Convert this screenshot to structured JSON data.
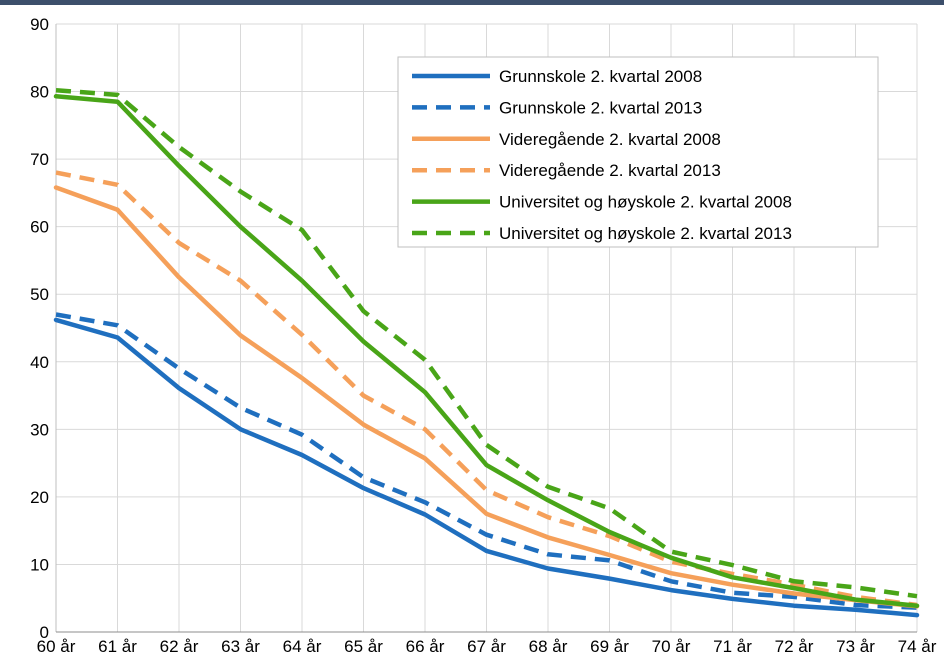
{
  "chart_data": {
    "type": "line",
    "title": "",
    "xlabel": "",
    "ylabel": "",
    "categories": [
      "60 år",
      "61 år",
      "62 år",
      "63 år",
      "64 år",
      "65 år",
      "66 år",
      "67 år",
      "68 år",
      "69 år",
      "70 år",
      "71 år",
      "72 år",
      "73 år",
      "74 år"
    ],
    "ylim": [
      0,
      90
    ],
    "yticks": [
      0,
      10,
      20,
      30,
      40,
      50,
      60,
      70,
      80,
      90
    ],
    "grid": true,
    "legend_position": "top-right",
    "series": [
      {
        "name": "Grunnskole 2. kvartal 2008",
        "color": "#1f6fbf",
        "style": "solid",
        "values": [
          46.2,
          43.6,
          36.1,
          30.0,
          26.2,
          21.3,
          17.4,
          12.0,
          9.4,
          7.9,
          6.2,
          4.9,
          3.9,
          3.3,
          2.5
        ]
      },
      {
        "name": "Grunnskole 2. kvartal 2013",
        "color": "#1f6fbf",
        "style": "dashed",
        "values": [
          47.0,
          45.4,
          39.0,
          33.2,
          29.2,
          22.9,
          19.2,
          14.4,
          11.5,
          10.6,
          7.5,
          5.8,
          5.2,
          4.0,
          3.6
        ]
      },
      {
        "name": "Videregående 2. kvartal 2008",
        "color": "#f5a05a",
        "style": "solid",
        "values": [
          65.8,
          62.5,
          52.5,
          43.9,
          37.6,
          30.7,
          25.7,
          17.5,
          14.0,
          11.4,
          8.7,
          7.0,
          5.7,
          4.7,
          3.8
        ]
      },
      {
        "name": "Videregående 2. kvartal 2013",
        "color": "#f5a05a",
        "style": "dashed",
        "values": [
          68.0,
          66.2,
          57.6,
          52.0,
          44.0,
          35.0,
          30.0,
          21.0,
          17.0,
          14.2,
          10.4,
          8.6,
          7.0,
          5.2,
          4.0
        ]
      },
      {
        "name": "Universitet og høyskole 2. kvartal 2008",
        "color": "#49a518",
        "style": "solid",
        "values": [
          79.3,
          78.5,
          69.0,
          60.0,
          52.0,
          43.0,
          35.5,
          24.7,
          19.5,
          14.8,
          11.0,
          8.1,
          6.5,
          4.8,
          3.9
        ]
      },
      {
        "name": "Universitet og høyskole 2. kvartal 2013",
        "color": "#49a518",
        "style": "dashed",
        "values": [
          80.2,
          79.5,
          71.8,
          65.2,
          59.5,
          47.5,
          40.3,
          27.7,
          21.5,
          18.3,
          11.9,
          9.9,
          7.5,
          6.6,
          5.3
        ]
      }
    ]
  }
}
